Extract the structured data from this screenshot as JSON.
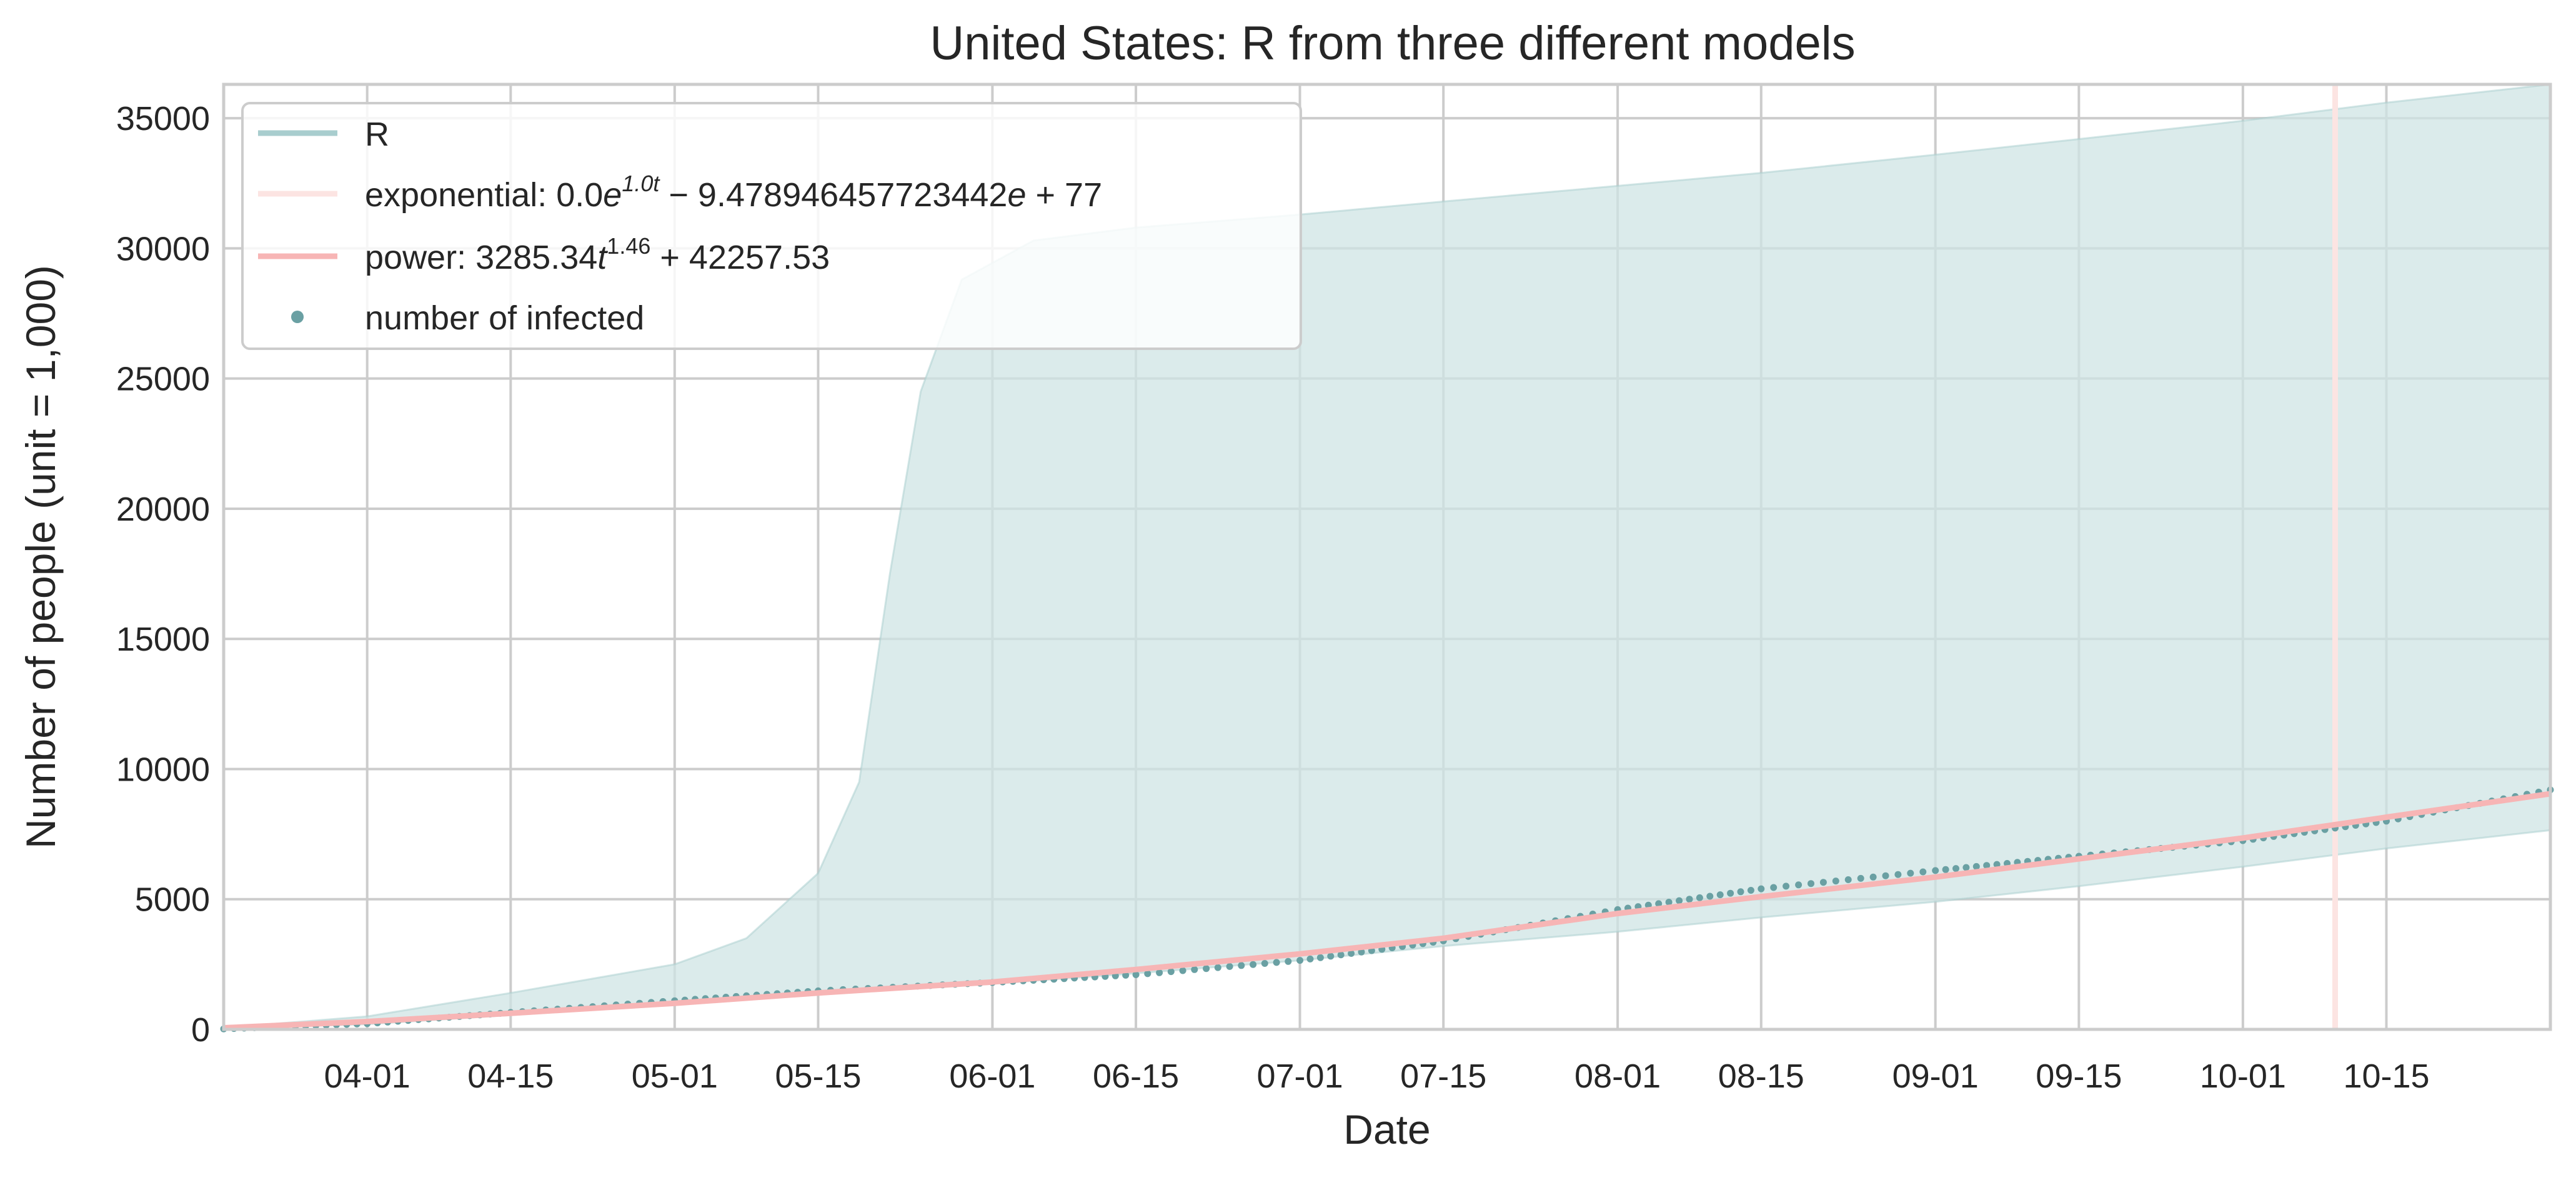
{
  "chart_data": {
    "type": "line",
    "title": "United States: R from three different models",
    "xlabel": "Date",
    "ylabel": "Number of people (unit = 1,000)",
    "xlim": [
      "2020-03-18",
      "2020-10-31"
    ],
    "ylim": [
      0,
      36300
    ],
    "grid": true,
    "legend_position": "top-left",
    "x_ticks": [
      {
        "date": "2020-04-01",
        "label": "04-01"
      },
      {
        "date": "2020-04-15",
        "label": "04-15"
      },
      {
        "date": "2020-05-01",
        "label": "05-01"
      },
      {
        "date": "2020-05-15",
        "label": "05-15"
      },
      {
        "date": "2020-06-01",
        "label": "06-01"
      },
      {
        "date": "2020-06-15",
        "label": "06-15"
      },
      {
        "date": "2020-07-01",
        "label": "07-01"
      },
      {
        "date": "2020-07-15",
        "label": "07-15"
      },
      {
        "date": "2020-08-01",
        "label": "08-01"
      },
      {
        "date": "2020-08-15",
        "label": "08-15"
      },
      {
        "date": "2020-09-01",
        "label": "09-01"
      },
      {
        "date": "2020-09-15",
        "label": "09-15"
      },
      {
        "date": "2020-10-01",
        "label": "10-01"
      },
      {
        "date": "2020-10-15",
        "label": "10-15"
      }
    ],
    "y_ticks": [
      0,
      5000,
      10000,
      15000,
      20000,
      25000,
      30000,
      35000
    ],
    "colors": {
      "R": "#a8cdce",
      "band": "#cfe4e4",
      "exponential": "#fce4e2",
      "power": "#f7b5b5",
      "infected": "#6aa0a3"
    },
    "legend": [
      {
        "key": "R",
        "label": "R",
        "style": "line"
      },
      {
        "key": "exponential",
        "label_parts": [
          "exponential: 0.0",
          "e",
          "1.0t",
          " − 9.478946457723442",
          "e",
          "",
          " + 77"
        ],
        "style": "line"
      },
      {
        "key": "power",
        "label_parts": [
          "power: 3285.34",
          "t",
          "1.46",
          " + 42257.53"
        ],
        "style": "line"
      },
      {
        "key": "infected",
        "label": "number of infected",
        "style": "dot"
      }
    ],
    "exponential_vertical_date": "2020-10-10",
    "series": [
      {
        "name": "power",
        "points": [
          [
            "2020-03-18",
            60
          ],
          [
            "2020-04-01",
            300
          ],
          [
            "2020-04-15",
            620
          ],
          [
            "2020-05-01",
            1000
          ],
          [
            "2020-05-15",
            1400
          ],
          [
            "2020-06-01",
            1820
          ],
          [
            "2020-06-15",
            2300
          ],
          [
            "2020-07-01",
            2900
          ],
          [
            "2020-07-15",
            3500
          ],
          [
            "2020-08-01",
            4450
          ],
          [
            "2020-08-15",
            5100
          ],
          [
            "2020-09-01",
            5850
          ],
          [
            "2020-09-15",
            6550
          ],
          [
            "2020-10-01",
            7350
          ],
          [
            "2020-10-15",
            8150
          ],
          [
            "2020-10-31",
            9050
          ]
        ]
      },
      {
        "name": "number of infected",
        "points": [
          [
            "2020-03-18",
            20
          ],
          [
            "2020-04-01",
            220
          ],
          [
            "2020-04-15",
            650
          ],
          [
            "2020-05-01",
            1100
          ],
          [
            "2020-05-15",
            1480
          ],
          [
            "2020-06-01",
            1800
          ],
          [
            "2020-06-15",
            2100
          ],
          [
            "2020-07-01",
            2650
          ],
          [
            "2020-07-15",
            3400
          ],
          [
            "2020-08-01",
            4600
          ],
          [
            "2020-08-15",
            5400
          ],
          [
            "2020-09-01",
            6100
          ],
          [
            "2020-09-15",
            6650
          ],
          [
            "2020-10-01",
            7250
          ],
          [
            "2020-10-15",
            8000
          ],
          [
            "2020-10-31",
            9200
          ]
        ]
      },
      {
        "name": "R band upper",
        "points": [
          [
            "2020-03-18",
            60
          ],
          [
            "2020-04-01",
            500
          ],
          [
            "2020-04-15",
            1400
          ],
          [
            "2020-05-01",
            2500
          ],
          [
            "2020-05-08",
            3500
          ],
          [
            "2020-05-15",
            6000
          ],
          [
            "2020-05-19",
            9500
          ],
          [
            "2020-05-22",
            17500
          ],
          [
            "2020-05-25",
            24500
          ],
          [
            "2020-05-29",
            28800
          ],
          [
            "2020-06-05",
            30300
          ],
          [
            "2020-06-15",
            30800
          ],
          [
            "2020-07-01",
            31300
          ],
          [
            "2020-07-15",
            31800
          ],
          [
            "2020-08-01",
            32400
          ],
          [
            "2020-08-15",
            32900
          ],
          [
            "2020-09-01",
            33600
          ],
          [
            "2020-09-15",
            34200
          ],
          [
            "2020-10-01",
            34900
          ],
          [
            "2020-10-15",
            35600
          ],
          [
            "2020-10-31",
            36300
          ]
        ]
      },
      {
        "name": "R band lower",
        "points": [
          [
            "2020-03-18",
            30
          ],
          [
            "2020-04-01",
            200
          ],
          [
            "2020-04-15",
            550
          ],
          [
            "2020-05-01",
            950
          ],
          [
            "2020-05-15",
            1350
          ],
          [
            "2020-06-01",
            1750
          ],
          [
            "2020-06-15",
            2150
          ],
          [
            "2020-07-01",
            2650
          ],
          [
            "2020-07-15",
            3200
          ],
          [
            "2020-08-01",
            3750
          ],
          [
            "2020-08-15",
            4300
          ],
          [
            "2020-09-01",
            4900
          ],
          [
            "2020-09-15",
            5500
          ],
          [
            "2020-10-01",
            6250
          ],
          [
            "2020-10-15",
            6950
          ],
          [
            "2020-10-31",
            7650
          ]
        ]
      }
    ]
  }
}
